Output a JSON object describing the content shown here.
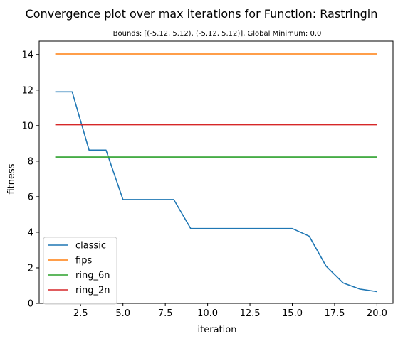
{
  "chart_data": {
    "type": "line",
    "title": "Convergence plot over max iterations for Function: Rastringin",
    "subtitle": "Bounds: [(-5.12, 5.12), (-5.12, 5.12)], Global Minimum: 0.0",
    "xlabel": "iteration",
    "ylabel": "fitness",
    "xlim": [
      0.05,
      20.95
    ],
    "ylim": [
      0,
      14.75
    ],
    "xticks": [
      2.5,
      5.0,
      7.5,
      10.0,
      12.5,
      15.0,
      17.5,
      20.0
    ],
    "xtick_labels": [
      "2.5",
      "5.0",
      "7.5",
      "10.0",
      "12.5",
      "15.0",
      "17.5",
      "20.0"
    ],
    "yticks": [
      0,
      2,
      4,
      6,
      8,
      10,
      12,
      14
    ],
    "ytick_labels": [
      "0",
      "2",
      "4",
      "6",
      "8",
      "10",
      "12",
      "14"
    ],
    "grid": false,
    "legend_position": "lower-left",
    "x": [
      1,
      2,
      3,
      4,
      5,
      6,
      7,
      8,
      9,
      10,
      11,
      12,
      13,
      14,
      15,
      16,
      17,
      18,
      19,
      20
    ],
    "series": [
      {
        "name": "classic",
        "color": "#1f77b4",
        "values": [
          11.9,
          11.9,
          8.62,
          8.62,
          5.84,
          5.84,
          5.84,
          5.84,
          4.21,
          4.21,
          4.21,
          4.21,
          4.21,
          4.21,
          4.21,
          3.78,
          2.09,
          1.15,
          0.8,
          0.66
        ]
      },
      {
        "name": "fips",
        "color": "#ff7f0e",
        "values": [
          14.03,
          14.03,
          14.03,
          14.03,
          14.03,
          14.03,
          14.03,
          14.03,
          14.03,
          14.03,
          14.03,
          14.03,
          14.03,
          14.03,
          14.03,
          14.03,
          14.03,
          14.03,
          14.03,
          14.03
        ]
      },
      {
        "name": "ring_6n",
        "color": "#2ca02c",
        "values": [
          8.23,
          8.23,
          8.23,
          8.23,
          8.23,
          8.23,
          8.23,
          8.23,
          8.23,
          8.23,
          8.23,
          8.23,
          8.23,
          8.23,
          8.23,
          8.23,
          8.23,
          8.23,
          8.23,
          8.23
        ]
      },
      {
        "name": "ring_2n",
        "color": "#d62728",
        "values": [
          10.05,
          10.05,
          10.05,
          10.05,
          10.05,
          10.05,
          10.05,
          10.05,
          10.05,
          10.05,
          10.05,
          10.05,
          10.05,
          10.05,
          10.05,
          10.05,
          10.05,
          10.05,
          10.05,
          10.05
        ]
      }
    ]
  }
}
